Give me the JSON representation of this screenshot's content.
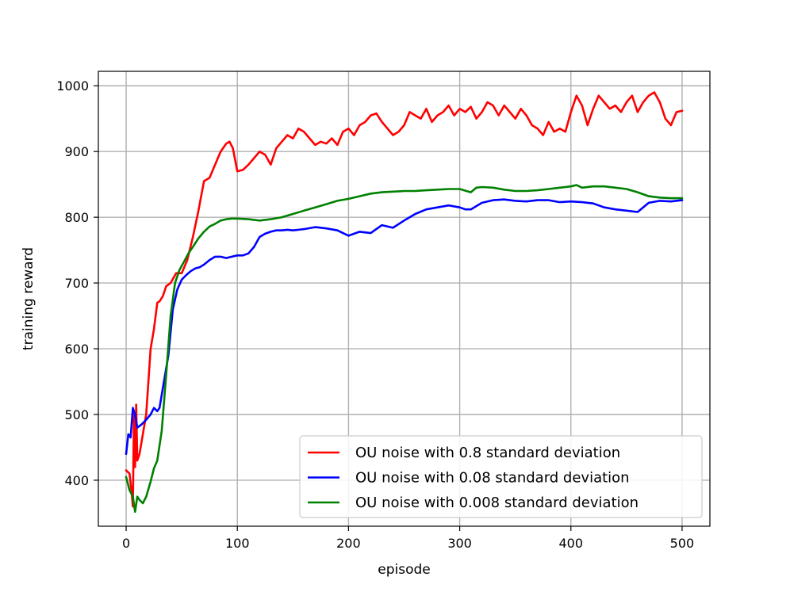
{
  "chart_data": {
    "type": "line",
    "xlabel": "episode",
    "ylabel": "training reward",
    "xlim": [
      -25,
      525
    ],
    "ylim": [
      330,
      1022
    ],
    "xticks": [
      0,
      100,
      200,
      300,
      400,
      500
    ],
    "yticks": [
      400,
      500,
      600,
      700,
      800,
      900,
      1000
    ],
    "grid": true,
    "legend_position": "lower-right",
    "series": [
      {
        "name": "OU noise with 0.8 standard deviation",
        "color": "#ff0000",
        "x": [
          0,
          3,
          5,
          6,
          7,
          8,
          9,
          10,
          12,
          15,
          18,
          20,
          22,
          25,
          28,
          30,
          33,
          36,
          40,
          45,
          50,
          55,
          60,
          65,
          70,
          75,
          80,
          85,
          90,
          93,
          96,
          100,
          105,
          110,
          115,
          120,
          125,
          130,
          135,
          140,
          145,
          150,
          155,
          160,
          165,
          170,
          175,
          180,
          185,
          190,
          195,
          200,
          205,
          210,
          215,
          220,
          225,
          230,
          235,
          240,
          245,
          250,
          255,
          260,
          265,
          270,
          275,
          280,
          285,
          290,
          295,
          300,
          305,
          310,
          315,
          320,
          325,
          330,
          335,
          340,
          345,
          350,
          355,
          360,
          365,
          370,
          375,
          380,
          385,
          390,
          395,
          400,
          405,
          410,
          415,
          420,
          425,
          430,
          435,
          440,
          445,
          450,
          455,
          460,
          465,
          470,
          475,
          480,
          485,
          490,
          495,
          500
        ],
        "values": [
          415,
          410,
          380,
          360,
          500,
          420,
          515,
          430,
          440,
          470,
          500,
          550,
          600,
          630,
          670,
          672,
          680,
          695,
          700,
          715,
          715,
          735,
          770,
          810,
          855,
          860,
          880,
          900,
          912,
          915,
          905,
          870,
          872,
          880,
          890,
          900,
          895,
          880,
          905,
          915,
          925,
          920,
          935,
          930,
          920,
          910,
          915,
          912,
          920,
          910,
          930,
          935,
          925,
          940,
          945,
          955,
          958,
          945,
          935,
          925,
          930,
          940,
          960,
          955,
          950,
          965,
          945,
          955,
          960,
          970,
          955,
          965,
          960,
          968,
          950,
          960,
          975,
          970,
          955,
          970,
          960,
          950,
          965,
          955,
          940,
          935,
          925,
          945,
          930,
          935,
          930,
          960,
          985,
          970,
          940,
          965,
          985,
          975,
          965,
          970,
          960,
          975,
          985,
          960,
          975,
          985,
          990,
          975,
          950,
          940,
          960,
          962
        ]
      },
      {
        "name": "OU noise with 0.08 standard deviation",
        "color": "#0000ff",
        "x": [
          0,
          2,
          4,
          6,
          8,
          10,
          14,
          18,
          22,
          25,
          28,
          30,
          34,
          38,
          42,
          46,
          50,
          54,
          58,
          62,
          66,
          70,
          75,
          80,
          85,
          90,
          95,
          100,
          105,
          110,
          115,
          120,
          125,
          130,
          135,
          140,
          145,
          150,
          160,
          170,
          180,
          190,
          200,
          210,
          220,
          230,
          240,
          250,
          260,
          270,
          280,
          290,
          300,
          305,
          310,
          320,
          330,
          340,
          350,
          360,
          370,
          380,
          390,
          400,
          410,
          420,
          430,
          440,
          450,
          460,
          470,
          480,
          490,
          500
        ],
        "values": [
          440,
          470,
          465,
          510,
          500,
          480,
          485,
          492,
          500,
          510,
          505,
          510,
          550,
          590,
          660,
          690,
          705,
          712,
          718,
          722,
          724,
          728,
          735,
          740,
          740,
          738,
          740,
          742,
          742,
          745,
          755,
          770,
          775,
          778,
          780,
          780,
          781,
          780,
          782,
          785,
          783,
          780,
          772,
          778,
          776,
          788,
          784,
          795,
          805,
          812,
          815,
          818,
          815,
          812,
          812,
          822,
          826,
          827,
          825,
          824,
          826,
          826,
          823,
          824,
          823,
          821,
          815,
          812,
          810,
          808,
          822,
          825,
          824,
          826
        ]
      },
      {
        "name": "OU noise with 0.008 standard deviation",
        "color": "#008000",
        "x": [
          0,
          3,
          6,
          8,
          10,
          12,
          15,
          18,
          22,
          25,
          28,
          32,
          36,
          40,
          44,
          48,
          52,
          56,
          60,
          65,
          70,
          75,
          80,
          85,
          90,
          95,
          100,
          110,
          120,
          130,
          140,
          150,
          160,
          170,
          180,
          190,
          200,
          210,
          220,
          230,
          240,
          250,
          260,
          270,
          280,
          290,
          300,
          310,
          315,
          320,
          330,
          340,
          350,
          360,
          370,
          380,
          390,
          400,
          405,
          410,
          420,
          430,
          440,
          450,
          460,
          470,
          480,
          490,
          500
        ],
        "values": [
          405,
          385,
          375,
          352,
          375,
          370,
          365,
          375,
          398,
          418,
          430,
          475,
          560,
          650,
          700,
          720,
          732,
          745,
          755,
          768,
          778,
          786,
          790,
          795,
          797,
          798,
          798,
          797,
          795,
          797,
          800,
          805,
          810,
          815,
          820,
          825,
          828,
          832,
          836,
          838,
          839,
          840,
          840,
          841,
          842,
          843,
          843,
          838,
          845,
          846,
          845,
          842,
          840,
          840,
          841,
          843,
          845,
          847,
          849,
          845,
          847,
          847,
          845,
          843,
          838,
          832,
          830,
          829,
          829
        ]
      }
    ]
  }
}
